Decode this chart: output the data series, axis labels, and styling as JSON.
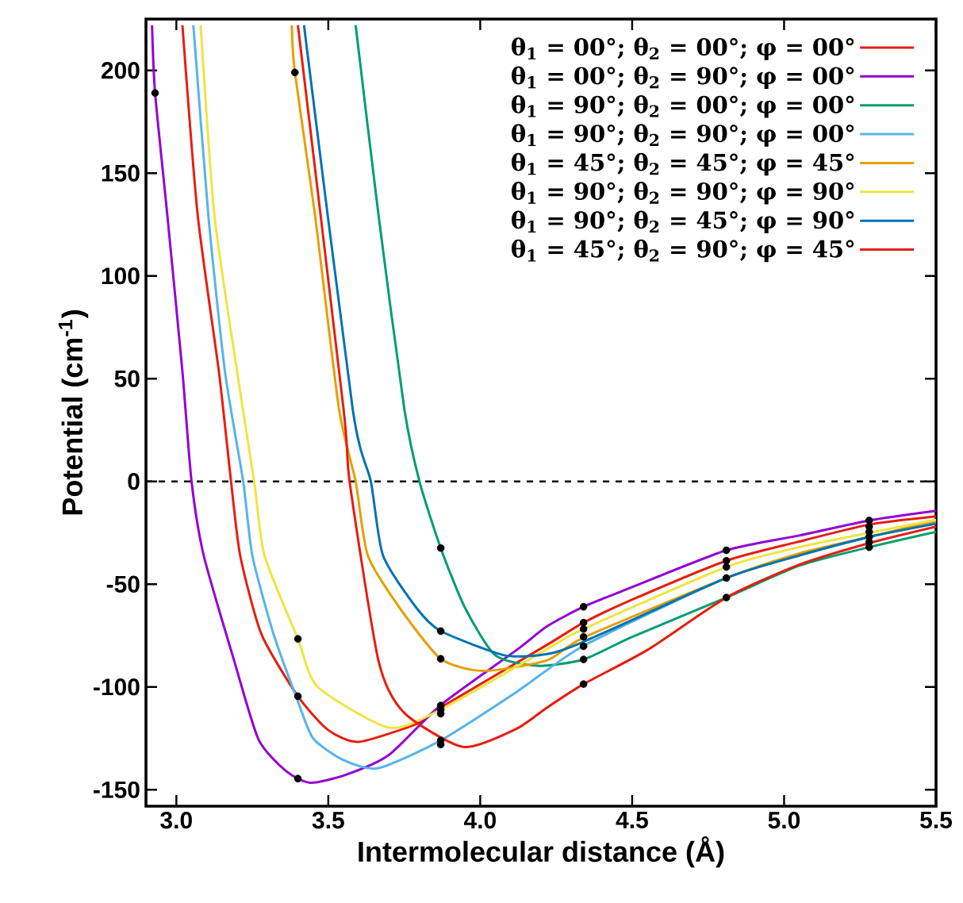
{
  "chart_data": {
    "type": "line",
    "xlabel": "Intermolecular distance (Å)",
    "ylabel": "Potential (cm$^{-1}$)",
    "xlim": [
      2.9,
      5.5
    ],
    "ylim": [
      -158,
      225
    ],
    "xticks": [
      {
        "value": 3,
        "label": "3.0"
      },
      {
        "value": 3.5,
        "label": "3.5"
      },
      {
        "value": 4,
        "label": "4.0"
      },
      {
        "value": 4.5,
        "label": "4.5"
      },
      {
        "value": 5,
        "label": "5.0"
      },
      {
        "value": 5.5,
        "label": "5.5"
      }
    ],
    "yticks": [
      -150,
      -100,
      -50,
      0,
      50,
      100,
      150,
      200
    ],
    "legend": "top right",
    "marker": "none",
    "line_style": "solid",
    "ref_lines": [
      {
        "axis": "y",
        "value": 0,
        "color": "#000000",
        "line_style": "dashed"
      }
    ],
    "series": [
      {
        "name": "θ$_{1}$ = 00°; θ$_{2}$ = 00°; φ = 00°",
        "color": "#e51e10",
        "x": [
          3.02,
          3.07,
          3.14,
          3.18,
          3.21,
          3.28,
          3.4,
          3.5,
          3.6,
          3.79,
          3.87,
          4.22,
          4.34,
          4.5,
          4.81,
          5.04,
          5.28,
          5.5
        ],
        "values": [
          222,
          130,
          53.4,
          0,
          -36,
          -74.3,
          -104.5,
          -121,
          -126.7,
          -118,
          -110,
          -79.5,
          -68.7,
          -57.5,
          -38.6,
          -29.6,
          -21,
          -17
        ]
      },
      {
        "name": "θ$_{1}$ = 00°; θ$_{2}$ = 90°; φ = 00°",
        "color": "#9400d3",
        "x": [
          2.92,
          2.93,
          2.97,
          3.02,
          3.05,
          3.09,
          3.19,
          3.27,
          3.36,
          3.44,
          3.56,
          3.7,
          3.87,
          4.12,
          4.22,
          4.34,
          4.49,
          4.81,
          5.05,
          5.28,
          5.5
        ],
        "values": [
          222,
          189,
          130,
          53.4,
          0,
          -36,
          -87.1,
          -125.4,
          -140.8,
          -146.6,
          -142.6,
          -133,
          -108.8,
          -82,
          -70.5,
          -61,
          -52,
          -33.5,
          -26.3,
          -19,
          -14.3
        ]
      },
      {
        "name": "θ$_{1}$ = 90°; θ$_{2}$ = 00°; φ = 00°",
        "color": "#009e73",
        "x": [
          3.59,
          3.665,
          3.75,
          3.8,
          3.87,
          3.95,
          4.05,
          4.19,
          4.34,
          4.5,
          4.81,
          5.05,
          5.28,
          5.5
        ],
        "values": [
          222,
          130,
          35.5,
          0,
          -32.4,
          -61.5,
          -84.6,
          -89.7,
          -86.6,
          -75.6,
          -56.5,
          -41,
          -32,
          -24.5
        ]
      },
      {
        "name": "θ$_{1}$ = 90°; θ$_{2}$ = 90°; φ = 00°",
        "color": "#56b4e9",
        "x": [
          3.056,
          3.105,
          3.16,
          3.22,
          3.25,
          3.32,
          3.4,
          3.45,
          3.55,
          3.665,
          3.87,
          4.12,
          4.34,
          4.81,
          5.05,
          5.28,
          5.5
        ],
        "values": [
          222,
          130,
          53.4,
          0,
          -36,
          -74.3,
          -107,
          -125,
          -135.6,
          -139.5,
          -126,
          -102.4,
          -80,
          -47,
          -36,
          -27,
          -20
        ]
      },
      {
        "name": "θ$_{1}$ = 45°; θ$_{2}$ = 45°; φ = 45°",
        "color": "#e69f00",
        "x": [
          3.38,
          3.39,
          3.456,
          3.535,
          3.59,
          3.63,
          3.735,
          3.87,
          4.01,
          4.22,
          4.34,
          4.81,
          5.05,
          5.28,
          5.5
        ],
        "values": [
          222,
          199,
          130,
          35.5,
          0,
          -36,
          -61.5,
          -86.3,
          -92.2,
          -87,
          -76,
          -47,
          -35,
          -27,
          -19
        ]
      },
      {
        "name": "θ$_{1}$ = 90°; θ$_{2}$ = 90°; φ = 90°",
        "color": "#f0e442",
        "x": [
          3.08,
          3.125,
          3.2,
          3.256,
          3.29,
          3.4,
          3.465,
          3.7,
          3.87,
          4.22,
          4.34,
          4.81,
          5.05,
          5.28,
          5.5
        ],
        "values": [
          222,
          130,
          53.4,
          0,
          -36,
          -76.6,
          -99.9,
          -119.8,
          -111,
          -81.5,
          -71.8,
          -41.6,
          -32,
          -25,
          -18.6
        ]
      },
      {
        "name": "θ$_{1}$ = 90°; θ$_{2}$ = 45°; φ = 90°",
        "color": "#0072b2",
        "x": [
          3.42,
          3.58,
          3.64,
          3.68,
          3.79,
          3.87,
          4.08,
          4.22,
          4.34,
          4.81,
          5.05,
          5.28,
          5.5
        ],
        "values": [
          222,
          35.5,
          0,
          -36,
          -61.5,
          -72.8,
          -84.6,
          -84,
          -78,
          -47,
          -36,
          -27,
          -20.6
        ]
      },
      {
        "name": "θ$_{1}$ = 45°; θ$_{2}$ = 90°; φ = 45°",
        "color": "#e51e10",
        "x": [
          3.4,
          3.55,
          3.57,
          3.665,
          3.75,
          3.945,
          4.12,
          4.22,
          4.34,
          4.55,
          4.81,
          5.05,
          5.28,
          5.5
        ],
        "values": [
          222,
          35.5,
          0,
          -87.1,
          -112.6,
          -129.2,
          -120.3,
          -110,
          -98.6,
          -82,
          -56.5,
          -40.5,
          -30,
          -22
        ]
      },
      {
        "type": "scatter",
        "marker": "circle",
        "color": "#000000",
        "x": [
          2.93,
          3.39,
          3.4,
          3.4,
          3.4,
          3.87,
          3.87,
          3.87,
          3.87,
          3.87,
          3.87,
          3.87,
          3.87,
          4.34,
          4.34,
          4.34,
          4.34,
          4.34,
          4.34,
          4.34,
          4.81,
          4.81,
          4.81,
          4.81,
          4.81,
          5.28,
          5.28,
          5.28,
          5.28,
          5.28,
          5.28
        ],
        "values": [
          189,
          199,
          -76.6,
          -104.5,
          -144.6,
          -32.4,
          -72.8,
          -86.3,
          -109,
          -111,
          -113,
          -126,
          -128,
          -61,
          -68.7,
          -71.8,
          -75.6,
          -80.2,
          -86.6,
          -98.6,
          -33.5,
          -38.6,
          -41.6,
          -47,
          -56.5,
          -19,
          -22,
          -24.5,
          -27,
          -29.5,
          -32
        ]
      }
    ]
  }
}
